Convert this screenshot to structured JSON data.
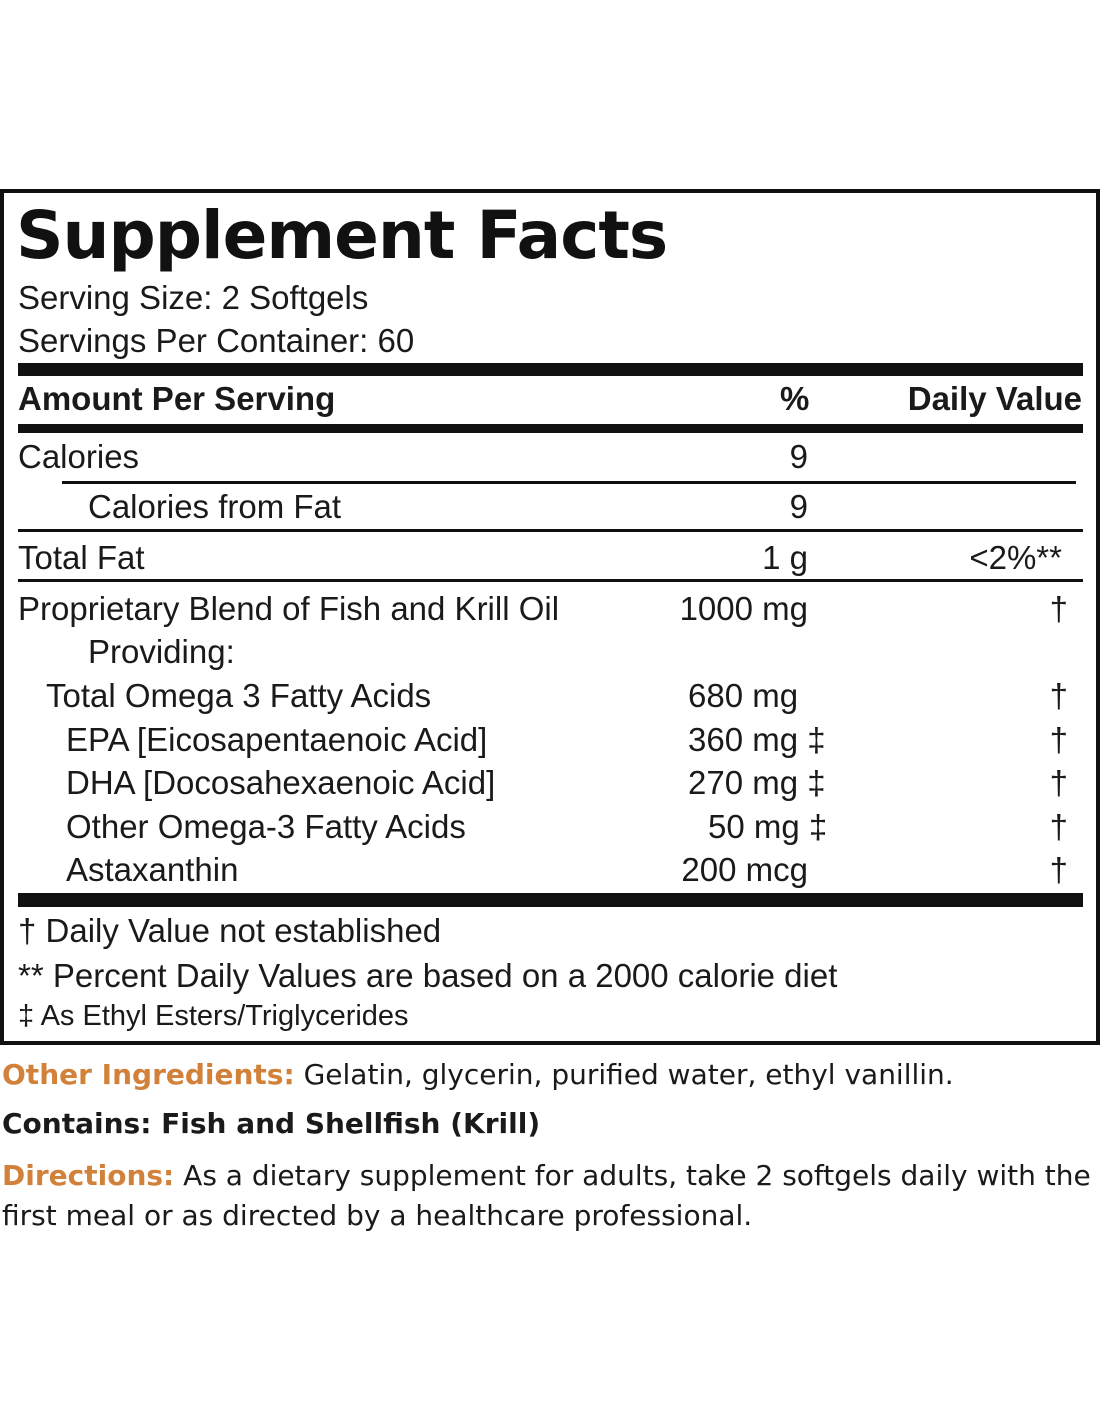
{
  "label": {
    "title": "Supplement Facts",
    "serving_size": "Serving Size: 2 Softgels",
    "servings_per_container": "Servings Per Container: 60",
    "header": {
      "amount": "Amount Per Serving",
      "percent": "%",
      "daily_value": "Daily Value"
    },
    "rows": [
      {
        "name": "Calories",
        "amount": "9",
        "dv": ""
      },
      {
        "name": "Calories from Fat",
        "amount": "9",
        "dv": ""
      },
      {
        "name": "Total Fat",
        "amount": "1 g",
        "dv": "<2%**"
      },
      {
        "name": "Proprietary Blend of Fish and Krill Oil",
        "amount": "1000 mg",
        "dv": "†"
      },
      {
        "name": "Providing:",
        "amount": "",
        "dv": ""
      },
      {
        "name": "Total Omega 3 Fatty Acids",
        "amount": "680 mg",
        "dv": "†"
      },
      {
        "name": "EPA [Eicosapentaenoic Acid]",
        "amount": "360 mg ‡",
        "dv": "†"
      },
      {
        "name": "DHA [Docosahexaenoic Acid]",
        "amount": "270 mg ‡",
        "dv": "†"
      },
      {
        "name": "Other Omega-3 Fatty Acids",
        "amount": "50 mg ‡",
        "dv": "†"
      },
      {
        "name": "Astaxanthin",
        "amount": "200 mcg",
        "dv": "†"
      }
    ],
    "footnotes": [
      "† Daily Value not established",
      "** Percent Daily Values are based on a 2000 calorie diet",
      "‡ As Ethyl Esters/Triglycerides"
    ]
  },
  "other_ingredients": {
    "label": "Other Ingredients:",
    "text": " Gelatin, glycerin, purified water, ethyl vanillin."
  },
  "contains": "Contains: Fish and Shellfish (Krill)",
  "directions": {
    "label": "Directions:",
    "text": " As a dietary supplement for adults, take 2 softgels daily with the first meal or as directed by a healthcare professional."
  },
  "colors": {
    "accent": "#d2813a",
    "border": "#111111"
  }
}
